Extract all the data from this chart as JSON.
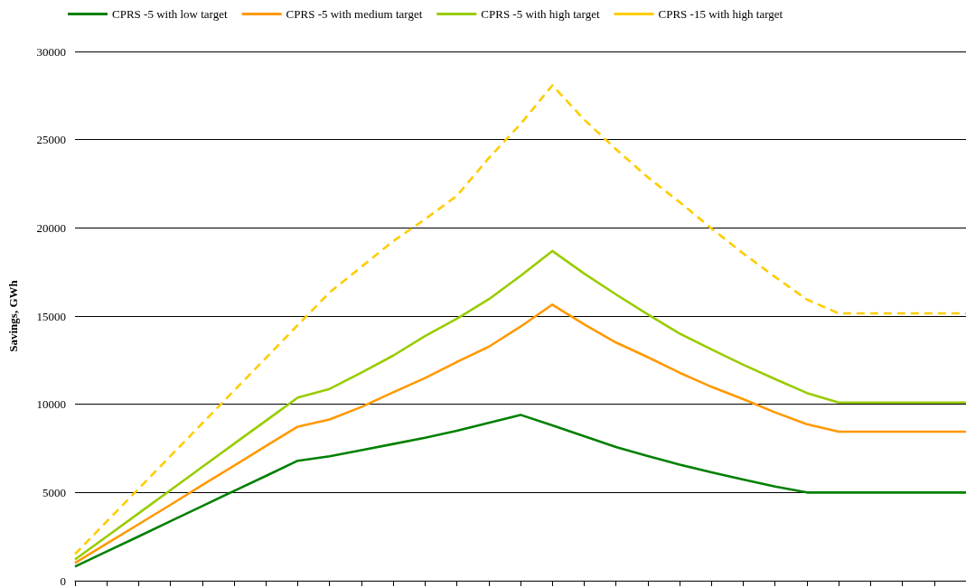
{
  "chart_data": {
    "type": "line",
    "ylabel": "Savings, GWh",
    "categories": [
      null,
      null,
      null,
      null,
      null,
      null,
      null,
      null,
      null,
      null,
      null,
      null,
      null,
      null,
      null,
      null,
      null,
      null,
      null,
      null,
      null,
      null,
      null,
      null,
      null,
      null,
      null,
      null,
      null
    ],
    "series": [
      {
        "name": "CPRS -5 with low target",
        "color": "#008000",
        "line_style": "solid",
        "values": [
          800,
          1660,
          2510,
          3370,
          4230,
          5090,
          5940,
          6800,
          7050,
          7400,
          7750,
          8100,
          8500,
          8950,
          9400,
          8800,
          8190,
          7580,
          7070,
          6580,
          6140,
          5730,
          5340,
          5000,
          5000,
          5000,
          5000,
          5000,
          5000
        ]
      },
      {
        "name": "CPRS -5 with medium target",
        "color": "#ff9900",
        "line_style": "solid",
        "values": [
          1000,
          2100,
          3200,
          4300,
          5420,
          6520,
          7630,
          8730,
          9140,
          9850,
          10680,
          11490,
          12400,
          13260,
          14400,
          15650,
          14530,
          13500,
          12670,
          11790,
          10990,
          10290,
          9540,
          8870,
          8450,
          8450,
          8450,
          8450,
          8450
        ]
      },
      {
        "name": "CPRS -5 with high target",
        "color": "#99cc00",
        "line_style": "solid",
        "values": [
          1200,
          2510,
          3820,
          5130,
          6450,
          7760,
          9070,
          10380,
          10870,
          11790,
          12760,
          13870,
          14850,
          15950,
          17280,
          18690,
          17410,
          16230,
          15100,
          14010,
          13110,
          12240,
          11430,
          10640,
          10100,
          10100,
          10100,
          10100,
          10100
        ]
      },
      {
        "name": "CPRS -15 with high target",
        "color": "#ffcc00",
        "line_style": "dashed",
        "values": [
          1500,
          3360,
          5210,
          7070,
          8920,
          10780,
          12630,
          14490,
          16340,
          17790,
          19250,
          20490,
          21820,
          23950,
          25880,
          28080,
          26140,
          24460,
          22870,
          21460,
          19970,
          18550,
          17220,
          15940,
          15150,
          15150,
          15150,
          15150,
          15150
        ]
      }
    ],
    "ylim": [
      0,
      30000
    ],
    "yticks": [
      0,
      5000,
      10000,
      15000,
      20000,
      25000,
      30000
    ],
    "grid": "y",
    "legend": "top",
    "tick_labels": "y",
    "marker": "none"
  }
}
